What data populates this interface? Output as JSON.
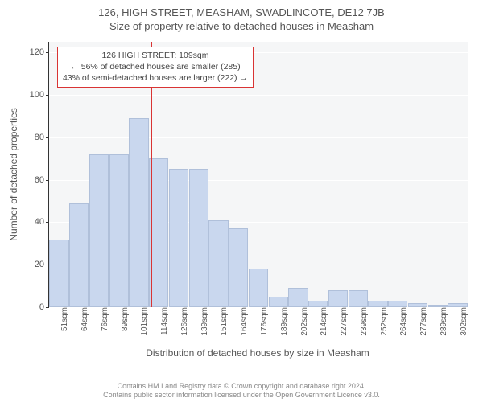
{
  "titles": {
    "line1": "126, HIGH STREET, MEASHAM, SWADLINCOTE, DE12 7JB",
    "line2": "Size of property relative to detached houses in Measham"
  },
  "chart": {
    "type": "histogram",
    "background_color": "#f5f6f7",
    "grid_color": "#ffffff",
    "bar_fill": "#c9d7ee",
    "bar_border": "#b0c0da",
    "marker_color": "#d93434",
    "ylabel": "Number of detached properties",
    "xlabel": "Distribution of detached houses by size in Measham",
    "ylim": [
      0,
      125
    ],
    "yticks": [
      0,
      20,
      40,
      60,
      80,
      100,
      120
    ],
    "xticks": [
      "51sqm",
      "64sqm",
      "76sqm",
      "89sqm",
      "101sqm",
      "114sqm",
      "126sqm",
      "139sqm",
      "151sqm",
      "164sqm",
      "176sqm",
      "189sqm",
      "202sqm",
      "214sqm",
      "227sqm",
      "239sqm",
      "252sqm",
      "264sqm",
      "277sqm",
      "289sqm",
      "302sqm"
    ],
    "bars": [
      32,
      49,
      72,
      72,
      89,
      70,
      65,
      65,
      41,
      37,
      18,
      5,
      9,
      3,
      8,
      8,
      3,
      3,
      2,
      1,
      2
    ],
    "marker_index": 4.6,
    "bar_count": 21
  },
  "annotation": {
    "line1": "126 HIGH STREET: 109sqm",
    "line2": "← 56% of detached houses are smaller (285)",
    "line3": "43% of semi-detached houses are larger (222) →"
  },
  "footer": {
    "line1": "Contains HM Land Registry data © Crown copyright and database right 2024.",
    "line2": "Contains public sector information licensed under the Open Government Licence v3.0."
  }
}
